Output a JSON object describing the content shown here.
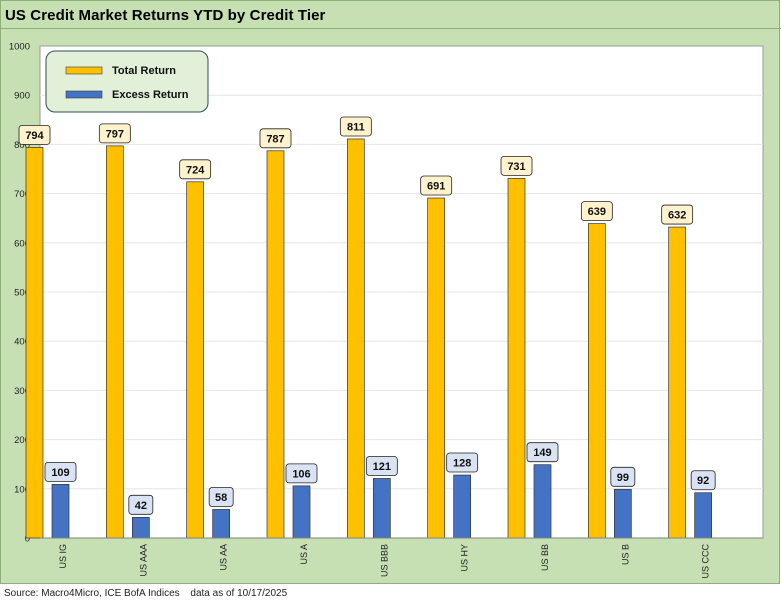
{
  "title": "US Credit Market Returns YTD by Credit Tier",
  "footer": {
    "source": "Source: Macro4Micro, ICE BofA Indices",
    "date_note": "data as of 10/17/2025"
  },
  "colors": {
    "total_return": "#ffc000",
    "excess_return": "#4472c4",
    "total_label_bg": "#fff2cc",
    "excess_label_bg": "#dae3f3"
  },
  "chart_data": {
    "type": "bar",
    "title": "US Credit Market Returns YTD by Credit Tier",
    "categories": [
      "US IG",
      "US AAA",
      "US AA",
      "US A",
      "US BBB",
      "US HY",
      "US BB",
      "US B",
      "US CCC"
    ],
    "series": [
      {
        "name": "Total Return",
        "values": [
          794,
          797,
          724,
          787,
          811,
          691,
          731,
          639,
          632
        ]
      },
      {
        "name": "Excess Return",
        "values": [
          109,
          42,
          58,
          106,
          121,
          128,
          149,
          99,
          92
        ]
      }
    ],
    "yticks": [
      0,
      100,
      200,
      300,
      400,
      500,
      600,
      700,
      800,
      900,
      1000
    ],
    "ylim": [
      0,
      1000
    ],
    "xlabel": "",
    "ylabel": "",
    "legend_position": "top-left",
    "grid": true
  }
}
